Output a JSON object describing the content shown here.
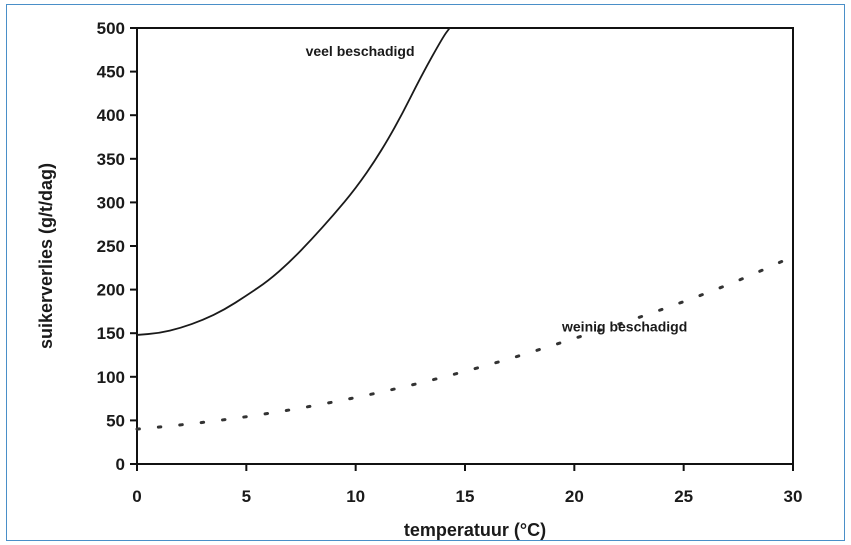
{
  "chart_data": {
    "type": "line",
    "title": "",
    "xlabel": "temperatuur (°C)",
    "ylabel": "suikerverlies (g/t/dag)",
    "xlim": [
      0,
      30
    ],
    "ylim": [
      0,
      500
    ],
    "xticks": [
      0,
      5,
      10,
      15,
      20,
      25,
      30
    ],
    "yticks": [
      0,
      50,
      100,
      150,
      200,
      250,
      300,
      350,
      400,
      450,
      500
    ],
    "grid": false,
    "legend": "none",
    "series": [
      {
        "name": "veel beschadigd",
        "style": "solid",
        "color": "#1a1a1a",
        "x": [
          0,
          1,
          2,
          3,
          4,
          5,
          6,
          7,
          8,
          9,
          10,
          11,
          12,
          13,
          14,
          14.3
        ],
        "y": [
          148,
          150,
          156,
          165,
          177,
          193,
          210,
          232,
          258,
          286,
          316,
          352,
          395,
          445,
          490,
          500
        ]
      },
      {
        "name": "weinig beschadigd",
        "style": "dotted",
        "color": "#333333",
        "x": [
          0,
          2.5,
          5,
          7.5,
          10,
          12.5,
          15,
          17.5,
          20,
          22.5,
          25,
          27.5,
          30
        ],
        "y": [
          40,
          46,
          54,
          64,
          76,
          90,
          106,
          124,
          144,
          164,
          186,
          210,
          238
        ]
      }
    ],
    "annotations": [
      {
        "text": "veel beschadigd",
        "x": 10.2,
        "y": 468
      },
      {
        "text": "weinig beschadigd",
        "x": 22.3,
        "y": 152
      }
    ]
  }
}
